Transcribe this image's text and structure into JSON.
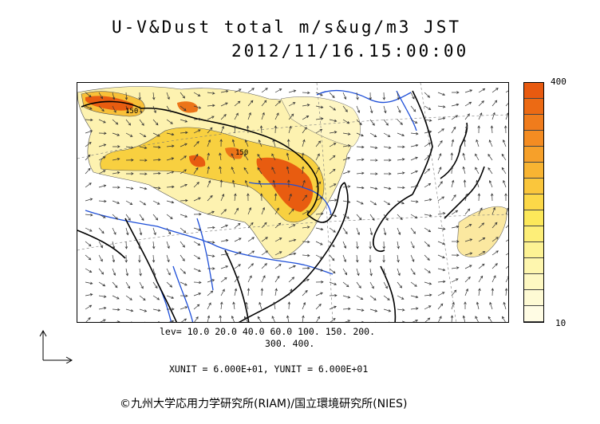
{
  "title": "U-V&Dust total m/s&ug/m3 JST",
  "datetime": "2012/11/16.15:00:00",
  "colorbar": {
    "max_label": "400",
    "min_label": "10",
    "colors": [
      "#e85a10",
      "#ec6a14",
      "#f07c1c",
      "#f48c22",
      "#f6a02a",
      "#f8b432",
      "#fac63c",
      "#fcd848",
      "#fce85a",
      "#fdee78",
      "#fdf294",
      "#fef6ae",
      "#fef8c2",
      "#fefad4",
      "#fffce4"
    ]
  },
  "levels_line1": "lev= 10.0 20.0 40.0 60.0 100. 150. 200.",
  "levels_line2": "300. 400.",
  "units": "XUNIT = 6.000E+01, YUNIT = 6.000E+01",
  "credit": "©九州大学応用力学研究所(RIAM)/国立環境研究所(NIES)",
  "map_labels": [
    "150",
    "150"
  ],
  "colors": {
    "coast": "#000000",
    "river": "#1e4fd8",
    "grid": "#777777",
    "dust_low": "#fdf2b0",
    "dust_mid": "#f8d040",
    "dust_high": "#e85c10"
  }
}
